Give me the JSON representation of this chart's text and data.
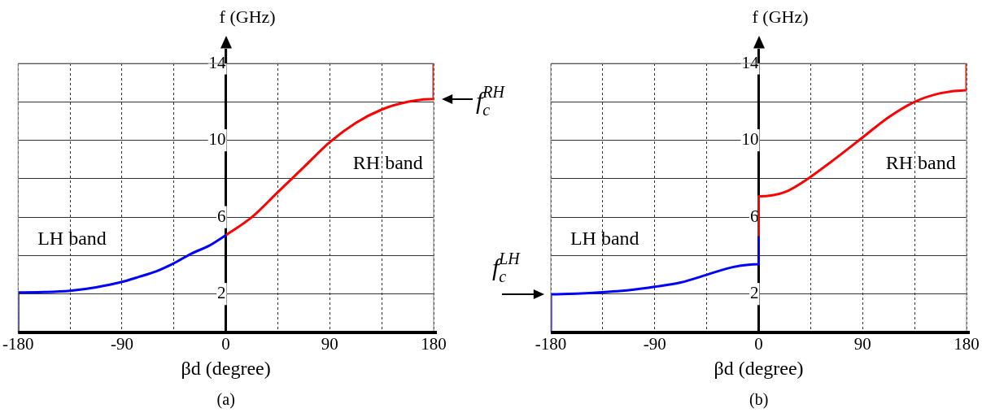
{
  "chart_data": [
    {
      "type": "line",
      "xlabel": "βd (degree)",
      "ylabel": "f (GHz)",
      "xlim": [
        -180,
        180
      ],
      "ylim": [
        0,
        14
      ],
      "xticks": [
        -180,
        {
          "value": -135,
          "label": null
        },
        -90,
        {
          "value": -45,
          "label": null
        },
        0,
        {
          "value": 45,
          "label": null
        },
        90,
        {
          "value": 135,
          "label": null
        },
        180
      ],
      "yticks": [
        {
          "value": 0,
          "label": null
        },
        2,
        {
          "value": 4,
          "label": null
        },
        6,
        {
          "value": 8,
          "label": null
        },
        10,
        {
          "value": 12,
          "label": null
        },
        14
      ],
      "grid": true,
      "legend": false,
      "marker": "none",
      "line_style": "solid",
      "series": [
        {
          "color": "#0000ff",
          "x": [
            -180,
            -180,
            -157.5,
            -135,
            -112.5,
            -90,
            -75,
            -60,
            -45,
            -30,
            -15,
            0
          ],
          "values": [
            0,
            2.08,
            2.1,
            2.17,
            2.35,
            2.63,
            2.9,
            3.19,
            3.6,
            4.1,
            4.5,
            5.06
          ]
        },
        {
          "color": "#ff0000",
          "x": [
            0,
            22.5,
            45,
            67.5,
            90,
            112.5,
            135,
            157.5,
            180,
            180
          ],
          "values": [
            5.06,
            6.0,
            7.3,
            8.6,
            9.9,
            10.9,
            11.6,
            12.0,
            12.15,
            14
          ]
        }
      ],
      "annotations": [
        "LH band",
        "RH band",
        {
          "text": "f$_{c}$$^{RH}$",
          "x": 180,
          "y": 12.15
        },
        "(a)"
      ]
    },
    {
      "type": "line",
      "xlabel": "βd (degree)",
      "ylabel": "f (GHz)",
      "xlim": [
        -180,
        180
      ],
      "ylim": [
        0,
        14
      ],
      "xticks": [
        -180,
        {
          "value": -135,
          "label": null
        },
        -90,
        {
          "value": -45,
          "label": null
        },
        0,
        {
          "value": 45,
          "label": null
        },
        90,
        {
          "value": 135,
          "label": null
        },
        180
      ],
      "yticks": [
        {
          "value": 0,
          "label": null
        },
        2,
        {
          "value": 4,
          "label": null
        },
        6,
        {
          "value": 8,
          "label": null
        },
        10,
        {
          "value": 12,
          "label": null
        },
        14
      ],
      "grid": true,
      "legend": false,
      "marker": "none",
      "line_style": "solid",
      "series": [
        {
          "color": "#0000ff",
          "x": [
            -180,
            -180,
            -157.5,
            -135,
            -112.5,
            -90,
            -67.5,
            -45,
            -22.5,
            0,
            0
          ],
          "values": [
            0,
            1.99,
            2.02,
            2.09,
            2.2,
            2.38,
            2.6,
            3.0,
            3.4,
            3.55,
            5.0
          ]
        },
        {
          "color": "#ff0000",
          "x": [
            0,
            0,
            22.5,
            45,
            67.5,
            90,
            112.5,
            135,
            157.5,
            180,
            180
          ],
          "values": [
            5.0,
            7.08,
            7.3,
            8.1,
            9.1,
            10.15,
            11.2,
            12.0,
            12.45,
            12.6,
            14
          ]
        }
      ],
      "annotations": [
        "LH band",
        "RH band",
        {
          "text": "f$_{c}$$^{LH}$",
          "x": -180,
          "y": 2
        },
        "(b)"
      ]
    }
  ]
}
